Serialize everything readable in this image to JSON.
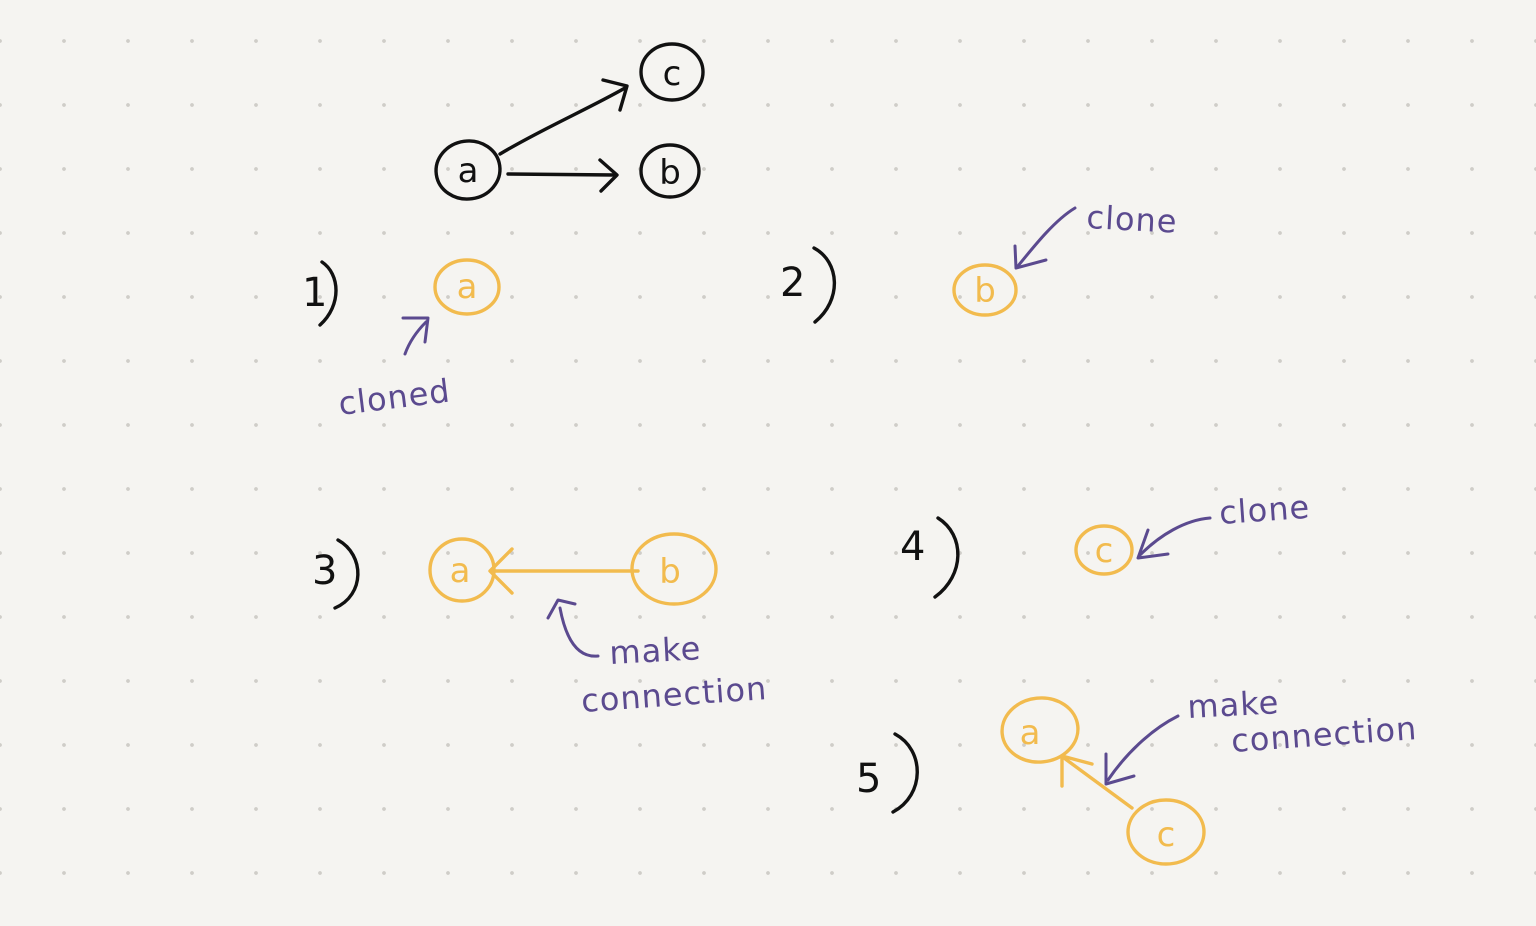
{
  "original_graph": {
    "nodes": [
      "a",
      "b",
      "c"
    ],
    "edges": [
      [
        "a",
        "c"
      ],
      [
        "a",
        "b"
      ]
    ]
  },
  "steps": [
    {
      "number": "1",
      "nodes": [
        "a"
      ],
      "annotation": "cloned"
    },
    {
      "number": "2",
      "nodes": [
        "b"
      ],
      "annotation": "clone"
    },
    {
      "number": "3",
      "nodes": [
        "a",
        "b"
      ],
      "annotation_line1": "make",
      "annotation_line2": "connection"
    },
    {
      "number": "4",
      "nodes": [
        "c"
      ],
      "annotation": "clone"
    },
    {
      "number": "5",
      "nodes": [
        "a",
        "c"
      ],
      "annotation_line1": "make",
      "annotation_line2": "connection"
    }
  ],
  "colors": {
    "original_ink": "#111111",
    "clone_ink": "#f2bb4e",
    "note_ink": "#5b4a8f",
    "paper": "#f5f4f1",
    "dot_grid": "#cfcdc8"
  }
}
